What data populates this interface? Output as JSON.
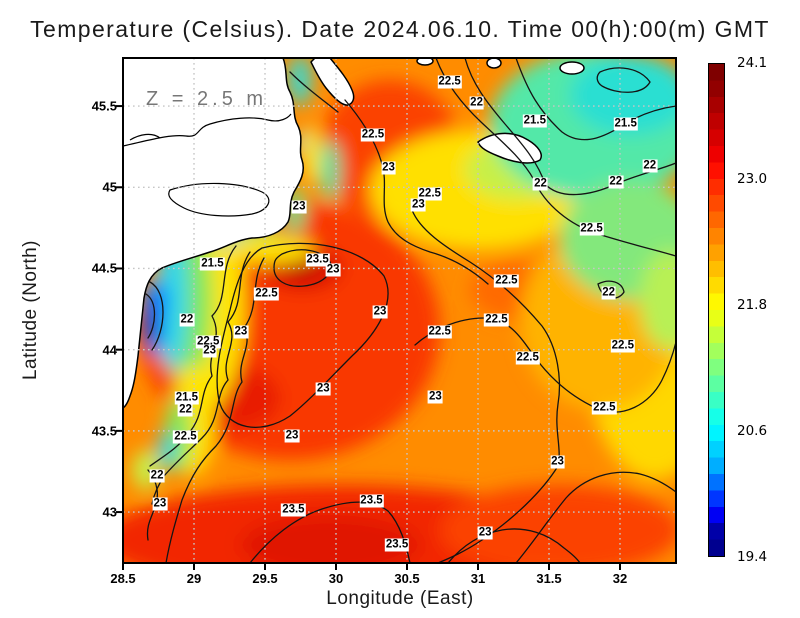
{
  "title": "Temperature (Celsius). Date 2024.06.10. Time 00(h):00(m) GMT",
  "chart_data": {
    "type": "filled_contour_map",
    "variable": "Temperature",
    "units": "Celsius",
    "date": "2024.06.10",
    "time_gmt": "00(h):00(m)",
    "depth_annotation": "Z = 2.5 m",
    "xlabel": "Longitude (East)",
    "ylabel": "Latitude (North)",
    "lon_range": [
      28.5,
      32.39
    ],
    "lat_range": [
      42.69,
      45.8
    ],
    "grid": true,
    "x_ticks": [
      {
        "label": "28.5",
        "value": 28.5
      },
      {
        "label": "29",
        "value": 29
      },
      {
        "label": "29.5",
        "value": 29.5
      },
      {
        "label": "30",
        "value": 30
      },
      {
        "label": "30.5",
        "value": 30.5
      },
      {
        "label": "31",
        "value": 31
      },
      {
        "label": "31.5",
        "value": 31.5
      },
      {
        "label": "32",
        "value": 32
      }
    ],
    "y_ticks": [
      {
        "label": "45.5",
        "value": 45.5
      },
      {
        "label": "45",
        "value": 45
      },
      {
        "label": "44.5",
        "value": 44.5
      },
      {
        "label": "44",
        "value": 44
      },
      {
        "label": "43.5",
        "value": 43.5
      },
      {
        "label": "43",
        "value": 43
      }
    ],
    "contour_interval": 0.5,
    "contour_levels_labeled": [
      21.5,
      22,
      22.5,
      23,
      23.5
    ],
    "contour_labels": [
      {
        "lon": 29.74,
        "lat": 44.88,
        "v": "23"
      },
      {
        "lon": 29.87,
        "lat": 44.55,
        "v": "23.5"
      },
      {
        "lon": 29.98,
        "lat": 44.49,
        "v": "23"
      },
      {
        "lon": 30.26,
        "lat": 45.32,
        "v": "22.5"
      },
      {
        "lon": 30.37,
        "lat": 45.12,
        "v": "23"
      },
      {
        "lon": 30.8,
        "lat": 45.65,
        "v": "22.5"
      },
      {
        "lon": 30.99,
        "lat": 45.52,
        "v": "22"
      },
      {
        "lon": 31.4,
        "lat": 45.41,
        "v": "21.5"
      },
      {
        "lon": 32.04,
        "lat": 45.39,
        "v": "21.5"
      },
      {
        "lon": 32.21,
        "lat": 45.13,
        "v": "22"
      },
      {
        "lon": 31.44,
        "lat": 45.02,
        "v": "22"
      },
      {
        "lon": 31.97,
        "lat": 45.03,
        "v": "22"
      },
      {
        "lon": 30.66,
        "lat": 44.96,
        "v": "22.5"
      },
      {
        "lon": 30.58,
        "lat": 44.89,
        "v": "23"
      },
      {
        "lon": 31.8,
        "lat": 44.74,
        "v": "22.5"
      },
      {
        "lon": 31.2,
        "lat": 44.42,
        "v": "22.5"
      },
      {
        "lon": 31.92,
        "lat": 44.35,
        "v": "22"
      },
      {
        "lon": 29.13,
        "lat": 44.53,
        "v": "21.5"
      },
      {
        "lon": 29.51,
        "lat": 44.34,
        "v": "22.5"
      },
      {
        "lon": 28.95,
        "lat": 44.18,
        "v": "22"
      },
      {
        "lon": 29.33,
        "lat": 44.11,
        "v": "23"
      },
      {
        "lon": 29.1,
        "lat": 44.05,
        "v": "22.5"
      },
      {
        "lon": 29.11,
        "lat": 43.99,
        "v": "23"
      },
      {
        "lon": 30.31,
        "lat": 44.23,
        "v": "23"
      },
      {
        "lon": 29.91,
        "lat": 43.76,
        "v": "23"
      },
      {
        "lon": 28.95,
        "lat": 43.7,
        "v": "21.5"
      },
      {
        "lon": 28.94,
        "lat": 43.63,
        "v": "22"
      },
      {
        "lon": 28.94,
        "lat": 43.46,
        "v": "22.5"
      },
      {
        "lon": 28.74,
        "lat": 43.22,
        "v": "22"
      },
      {
        "lon": 28.76,
        "lat": 43.05,
        "v": "23"
      },
      {
        "lon": 29.69,
        "lat": 43.47,
        "v": "23"
      },
      {
        "lon": 29.7,
        "lat": 43.01,
        "v": "23.5"
      },
      {
        "lon": 30.25,
        "lat": 43.07,
        "v": "23.5"
      },
      {
        "lon": 30.43,
        "lat": 42.8,
        "v": "23.5"
      },
      {
        "lon": 30.73,
        "lat": 44.11,
        "v": "22.5"
      },
      {
        "lon": 31.13,
        "lat": 44.18,
        "v": "22.5"
      },
      {
        "lon": 31.35,
        "lat": 43.95,
        "v": "22.5"
      },
      {
        "lon": 32.02,
        "lat": 44.02,
        "v": "22.5"
      },
      {
        "lon": 31.89,
        "lat": 43.64,
        "v": "22.5"
      },
      {
        "lon": 30.7,
        "lat": 43.71,
        "v": "23"
      },
      {
        "lon": 31.56,
        "lat": 43.31,
        "v": "23"
      },
      {
        "lon": 31.05,
        "lat": 42.87,
        "v": "23"
      }
    ],
    "colorbar": {
      "min": 19.4,
      "max": 24.1,
      "ticks": [
        {
          "label": "24.1",
          "value": 24.1
        },
        {
          "label": "23.0",
          "value": 23.0
        },
        {
          "label": "21.8",
          "value": 21.8
        },
        {
          "label": "20.6",
          "value": 20.6
        },
        {
          "label": "19.4",
          "value": 19.4
        }
      ],
      "colors": [
        "#7f0000",
        "#920000",
        "#a80000",
        "#bf0000",
        "#d60000",
        "#ee0000",
        "#ff1000",
        "#ff2d00",
        "#ff4a00",
        "#ff6700",
        "#ff8400",
        "#ffa100",
        "#ffbe00",
        "#ffdb00",
        "#fff800",
        "#e8ff16",
        "#c5ff39",
        "#a2ff5c",
        "#7fff7f",
        "#5cffa2",
        "#39ffc5",
        "#16ffe8",
        "#00f4ff",
        "#00d1ff",
        "#00aeff",
        "#0072ff",
        "#0036ff",
        "#0000f4",
        "#0000a8",
        "#00008f"
      ]
    },
    "land_color": "#ffffff",
    "grid_color": "#c6c6c6"
  }
}
